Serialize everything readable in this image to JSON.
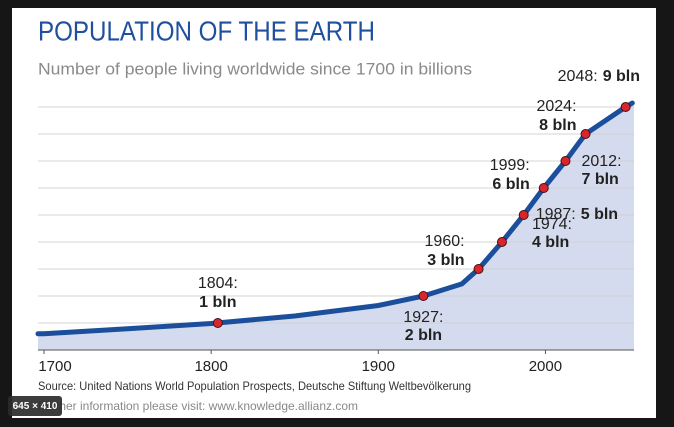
{
  "chart_data": {
    "type": "line",
    "title": "POPULATION OF THE EARTH",
    "subtitle": "Number of people living worldwide since 1700 in billions",
    "x": [
      1700,
      1750,
      1800,
      1850,
      1900,
      1927,
      1950,
      1960,
      1974,
      1987,
      1999,
      2012,
      2024,
      2048,
      2052
    ],
    "values": [
      0.6,
      0.79,
      0.98,
      1.26,
      1.65,
      2,
      2.45,
      3,
      4,
      5,
      6,
      7,
      8,
      9,
      9.15
    ],
    "color": "#1b4f9c",
    "area_color": "#d5dbef",
    "points": {
      "x": [
        1804,
        1927,
        1960,
        1974,
        1987,
        1999,
        2012,
        2024,
        2048
      ],
      "values": [
        1,
        2,
        3,
        4,
        5,
        6,
        7,
        8,
        9
      ],
      "color": "#d7262e",
      "labels": [
        [
          "1804:",
          "1 bln"
        ],
        [
          "1927:",
          "2 bln"
        ],
        [
          "1960:",
          "3 bln"
        ],
        [
          "1974:",
          "4 bln"
        ],
        [
          "1987:",
          "5 bln"
        ],
        [
          "1999:",
          "6 bln"
        ],
        [
          "2012:",
          "7 bln"
        ],
        [
          "2024:",
          "8 bln"
        ],
        [
          "2048:",
          "9 bln"
        ]
      ]
    },
    "xlim": [
      1696.4,
      2053
    ],
    "ylim": [
      0,
      9.26
    ],
    "xticks": [
      1700,
      1800,
      1900,
      2000
    ],
    "yticks": [
      1,
      2,
      3,
      4,
      5,
      6,
      7,
      8,
      9
    ],
    "grid": true,
    "source": "Source: United Nations World Population Prospects, Deutsche Stiftung Weltbevölkerung",
    "note": "Further information please visit: www.knowledge.allianz.com"
  },
  "viewer": {
    "badge": "645 × 410"
  }
}
